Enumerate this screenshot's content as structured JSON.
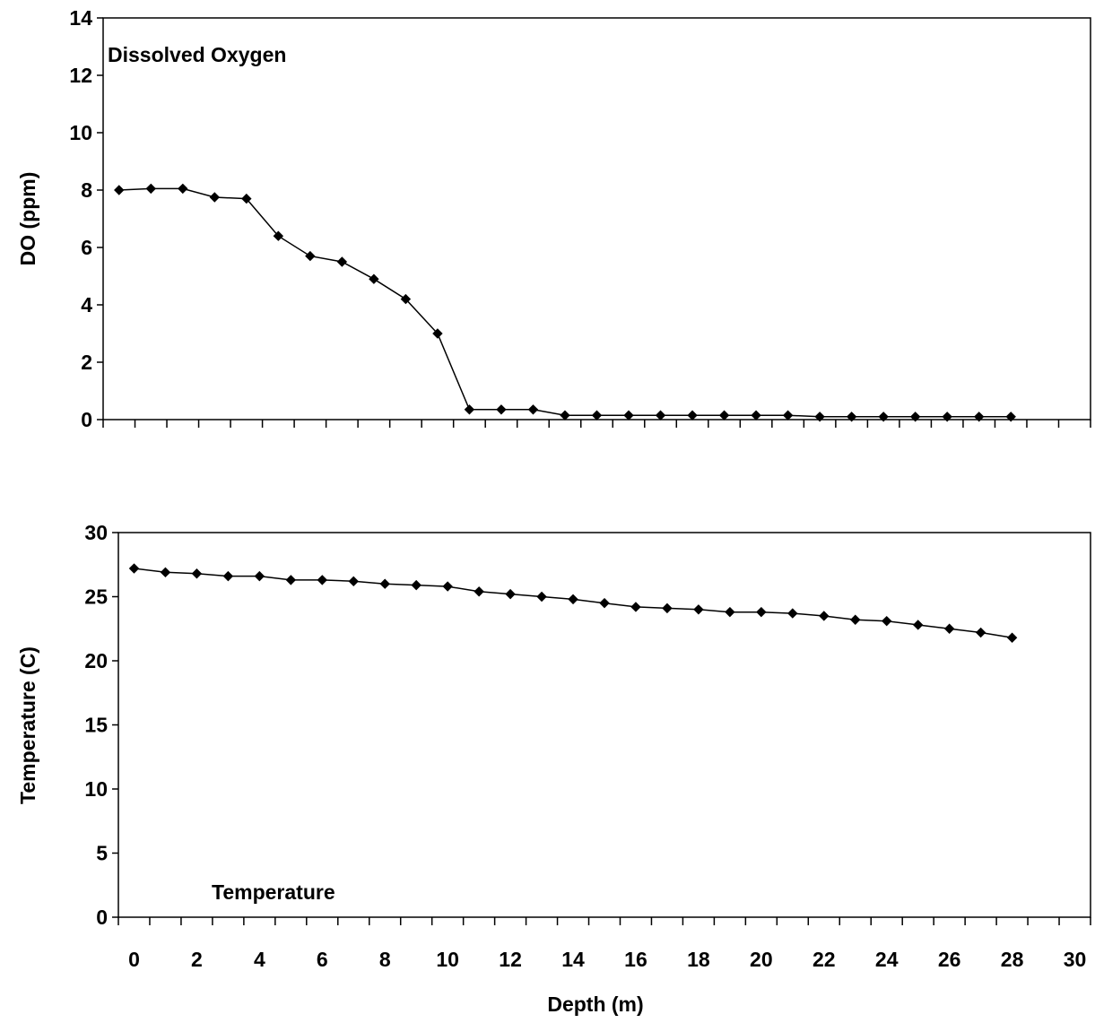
{
  "colors": {
    "series_line": "#000000",
    "marker": "#000000",
    "frame": "#000000",
    "background": "#ffffff"
  },
  "chart_data": [
    {
      "type": "line",
      "title": "Dissolved Oxygen",
      "xlabel": "",
      "ylabel": "DO (ppm)",
      "ylim": [
        0,
        14
      ],
      "xlim": [
        -0.5,
        30.5
      ],
      "yticks": [
        0,
        2,
        4,
        6,
        8,
        10,
        12,
        14
      ],
      "grid": false,
      "legend": "none",
      "marker": "diamond",
      "series": [
        {
          "x": [
            0,
            1,
            2,
            3,
            4,
            5,
            6,
            7,
            8,
            9,
            10,
            11,
            12,
            13,
            14,
            15,
            16,
            17,
            18,
            19,
            20,
            21,
            22,
            23,
            24,
            25,
            26,
            27,
            28
          ],
          "values": [
            8.0,
            8.05,
            8.05,
            7.75,
            7.7,
            6.4,
            5.7,
            5.5,
            4.9,
            4.2,
            3.0,
            0.35,
            0.35,
            0.35,
            0.15,
            0.15,
            0.15,
            0.15,
            0.15,
            0.15,
            0.15,
            0.15,
            0.1,
            0.1,
            0.1,
            0.1,
            0.1,
            0.1,
            0.1
          ]
        }
      ]
    },
    {
      "type": "line",
      "title": "Temperature",
      "xlabel": "Depth (m)",
      "ylabel": "Temperature (C)",
      "ylim": [
        0,
        30
      ],
      "xlim": [
        -0.5,
        30.5
      ],
      "yticks": [
        0,
        5,
        10,
        15,
        20,
        25,
        30
      ],
      "xticks": [
        0,
        2,
        4,
        6,
        8,
        10,
        12,
        14,
        16,
        18,
        20,
        22,
        24,
        26,
        28,
        30
      ],
      "grid": false,
      "legend": "none",
      "marker": "diamond",
      "series": [
        {
          "x": [
            0,
            1,
            2,
            3,
            4,
            5,
            6,
            7,
            8,
            9,
            10,
            11,
            12,
            13,
            14,
            15,
            16,
            17,
            18,
            19,
            20,
            21,
            22,
            23,
            24,
            25,
            26,
            27,
            28
          ],
          "values": [
            27.2,
            26.9,
            26.8,
            26.6,
            26.6,
            26.3,
            26.3,
            26.2,
            26.0,
            25.9,
            25.8,
            25.4,
            25.2,
            25.0,
            24.8,
            24.5,
            24.2,
            24.1,
            24.0,
            23.8,
            23.8,
            23.7,
            23.5,
            23.2,
            23.1,
            22.8,
            22.5,
            22.2,
            21.8
          ]
        }
      ]
    }
  ]
}
